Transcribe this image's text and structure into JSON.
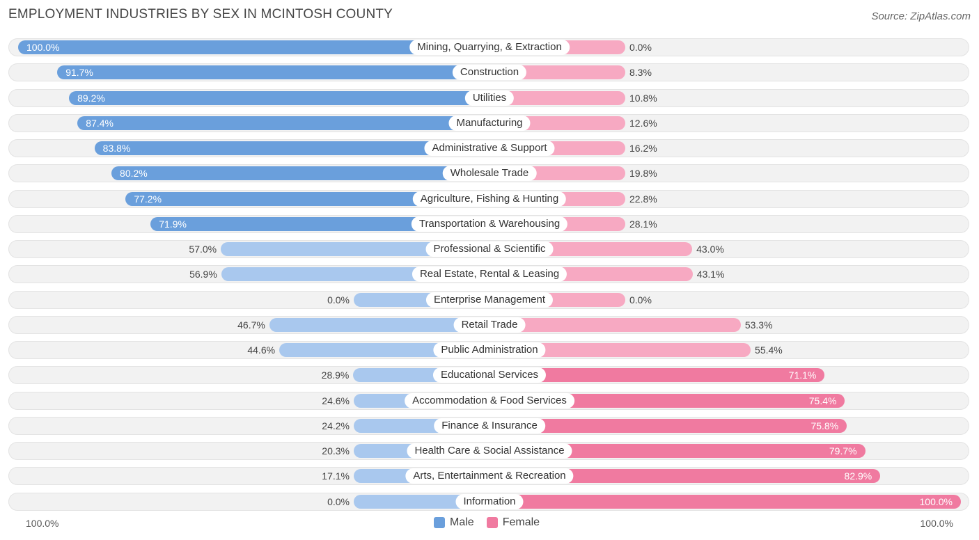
{
  "title": "EMPLOYMENT INDUSTRIES BY SEX IN MCINTOSH COUNTY",
  "source": "Source: ZipAtlas.com",
  "axis": {
    "left_label": "100.0%",
    "right_label": "100.0%"
  },
  "legend": {
    "male_label": "Male",
    "female_label": "Female"
  },
  "colors": {
    "male": "#6a9fdc",
    "male_light": "#a9c8ee",
    "female": "#f07aa0",
    "female_light": "#f7a9c2",
    "row_background": "#f2f2f2"
  },
  "chart_data": {
    "type": "bar",
    "orientation": "horizontal-diverging",
    "title": "EMPLOYMENT INDUSTRIES BY SEX IN MCINTOSH COUNTY",
    "xlim": [
      0,
      100
    ],
    "categories": [
      "Mining, Quarrying, & Extraction",
      "Construction",
      "Utilities",
      "Manufacturing",
      "Administrative & Support",
      "Wholesale Trade",
      "Agriculture, Fishing & Hunting",
      "Transportation & Warehousing",
      "Professional & Scientific",
      "Real Estate, Rental & Leasing",
      "Enterprise Management",
      "Retail Trade",
      "Public Administration",
      "Educational Services",
      "Accommodation & Food Services",
      "Finance & Insurance",
      "Health Care & Social Assistance",
      "Arts, Entertainment & Recreation",
      "Information"
    ],
    "series": [
      {
        "name": "Male",
        "values": [
          100.0,
          91.7,
          89.2,
          87.4,
          83.8,
          80.2,
          77.2,
          71.9,
          57.0,
          56.9,
          0.0,
          46.7,
          44.6,
          28.9,
          24.6,
          24.2,
          20.3,
          17.1,
          0.0
        ],
        "labels": [
          "100.0%",
          "91.7%",
          "89.2%",
          "87.4%",
          "83.8%",
          "80.2%",
          "77.2%",
          "71.9%",
          "57.0%",
          "56.9%",
          "0.0%",
          "46.7%",
          "44.6%",
          "28.9%",
          "24.6%",
          "24.2%",
          "20.3%",
          "17.1%",
          "0.0%"
        ]
      },
      {
        "name": "Female",
        "values": [
          0.0,
          8.3,
          10.8,
          12.6,
          16.2,
          19.8,
          22.8,
          28.1,
          43.0,
          43.1,
          0.0,
          53.3,
          55.4,
          71.1,
          75.4,
          75.8,
          79.7,
          82.9,
          100.0
        ],
        "labels": [
          "0.0%",
          "8.3%",
          "10.8%",
          "12.6%",
          "16.2%",
          "19.8%",
          "22.8%",
          "28.1%",
          "43.0%",
          "43.1%",
          "0.0%",
          "53.3%",
          "55.4%",
          "71.1%",
          "75.4%",
          "75.8%",
          "79.7%",
          "82.9%",
          "100.0%"
        ]
      }
    ]
  }
}
